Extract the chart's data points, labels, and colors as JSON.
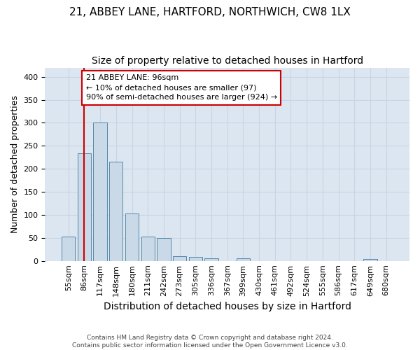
{
  "title_line1": "21, ABBEY LANE, HARTFORD, NORTHWICH, CW8 1LX",
  "title_line2": "Size of property relative to detached houses in Hartford",
  "xlabel": "Distribution of detached houses by size in Hartford",
  "ylabel": "Number of detached properties",
  "footnote": "Contains HM Land Registry data © Crown copyright and database right 2024.\nContains public sector information licensed under the Open Government Licence v3.0.",
  "bin_labels": [
    "55sqm",
    "86sqm",
    "117sqm",
    "148sqm",
    "180sqm",
    "211sqm",
    "242sqm",
    "273sqm",
    "305sqm",
    "336sqm",
    "367sqm",
    "399sqm",
    "430sqm",
    "461sqm",
    "492sqm",
    "524sqm",
    "555sqm",
    "586sqm",
    "617sqm",
    "649sqm",
    "680sqm"
  ],
  "bar_values": [
    53,
    233,
    300,
    215,
    103,
    52,
    49,
    10,
    9,
    6,
    0,
    5,
    0,
    0,
    0,
    0,
    0,
    0,
    0,
    4,
    0
  ],
  "bar_color": "#c9d9e8",
  "bar_edge_color": "#5588aa",
  "vline_bin_index": 1,
  "vline_color": "#cc0000",
  "annotation_text": "21 ABBEY LANE: 96sqm\n← 10% of detached houses are smaller (97)\n90% of semi-detached houses are larger (924) →",
  "annotation_box_color": "#ffffff",
  "annotation_box_edge": "#cc0000",
  "ylim": [
    0,
    420
  ],
  "yticks": [
    0,
    50,
    100,
    150,
    200,
    250,
    300,
    350,
    400
  ],
  "grid_color": "#c8d4e4",
  "bg_color": "#dce6f0",
  "title_fontsize": 11,
  "subtitle_fontsize": 10,
  "xlabel_fontsize": 10,
  "ylabel_fontsize": 9,
  "tick_fontsize": 8,
  "annot_fontsize": 8
}
